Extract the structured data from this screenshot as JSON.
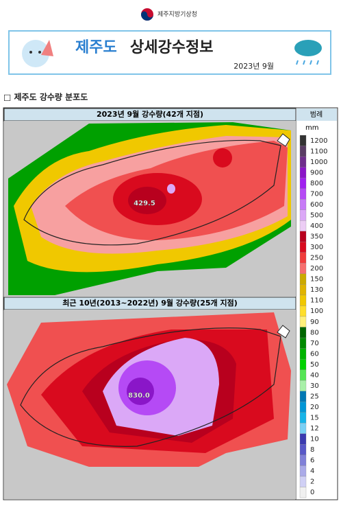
{
  "header": {
    "agency": "제주지방기상청",
    "title_region": "제주도",
    "title_rest": "상세강수정보",
    "date": "2023년 9월"
  },
  "section": {
    "title": "□ 제주도 강수량 분포도"
  },
  "maps": [
    {
      "title": "2023년 9월 강수량(42개 지점)",
      "max_label": "429.5"
    },
    {
      "title": "최근 10년(2013~2022년) 9월 강수량(25개 지점)",
      "max_label": "830.0"
    }
  ],
  "legend": {
    "title": "범례",
    "unit": "mm",
    "levels": [
      1200,
      1100,
      1000,
      900,
      800,
      700,
      600,
      500,
      400,
      350,
      300,
      250,
      200,
      150,
      130,
      110,
      100,
      90,
      80,
      70,
      60,
      50,
      40,
      30,
      25,
      20,
      15,
      12,
      10,
      8,
      6,
      4,
      2,
      0
    ],
    "colors": [
      "#333333",
      "#5a3c64",
      "#6f2d8c",
      "#8a16c8",
      "#a020f0",
      "#b54af5",
      "#c77bf7",
      "#dba8f7",
      "#eccdf5",
      "#b8001e",
      "#d90a1e",
      "#f03c3c",
      "#f76f6f",
      "#ccaa00",
      "#e0b400",
      "#f0c800",
      "#ffde2a",
      "#fff07a",
      "#006600",
      "#008a00",
      "#00b400",
      "#00d200",
      "#55e555",
      "#a8f0a8",
      "#0077b3",
      "#0096d6",
      "#16b4e8",
      "#7ad0f5",
      "#3b3bb0",
      "#5858c8",
      "#8080d8",
      "#aaaae8",
      "#d0d0f5",
      "#f0f0f0"
    ]
  }
}
